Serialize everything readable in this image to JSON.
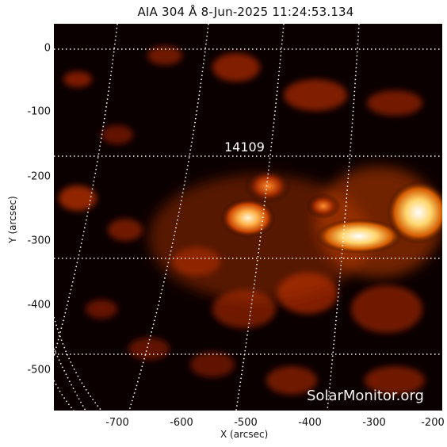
{
  "title": "AIA 304 Å  8-Jun-2025 11:24:53.134",
  "x_axis": {
    "label": "X (arcsec)",
    "ticks": [
      "-700",
      "-600",
      "-500",
      "-400",
      "-300",
      "-200"
    ]
  },
  "y_axis": {
    "label": "Y (arcsec)",
    "ticks": [
      "0",
      "-100",
      "-200",
      "-300",
      "-400",
      "-500"
    ]
  },
  "region": {
    "label": "14109"
  },
  "watermark": "SolarMonitor.org",
  "colors": {
    "background": "#0b0000",
    "active_region": "#ffb24a",
    "grid": "#ffffff"
  }
}
